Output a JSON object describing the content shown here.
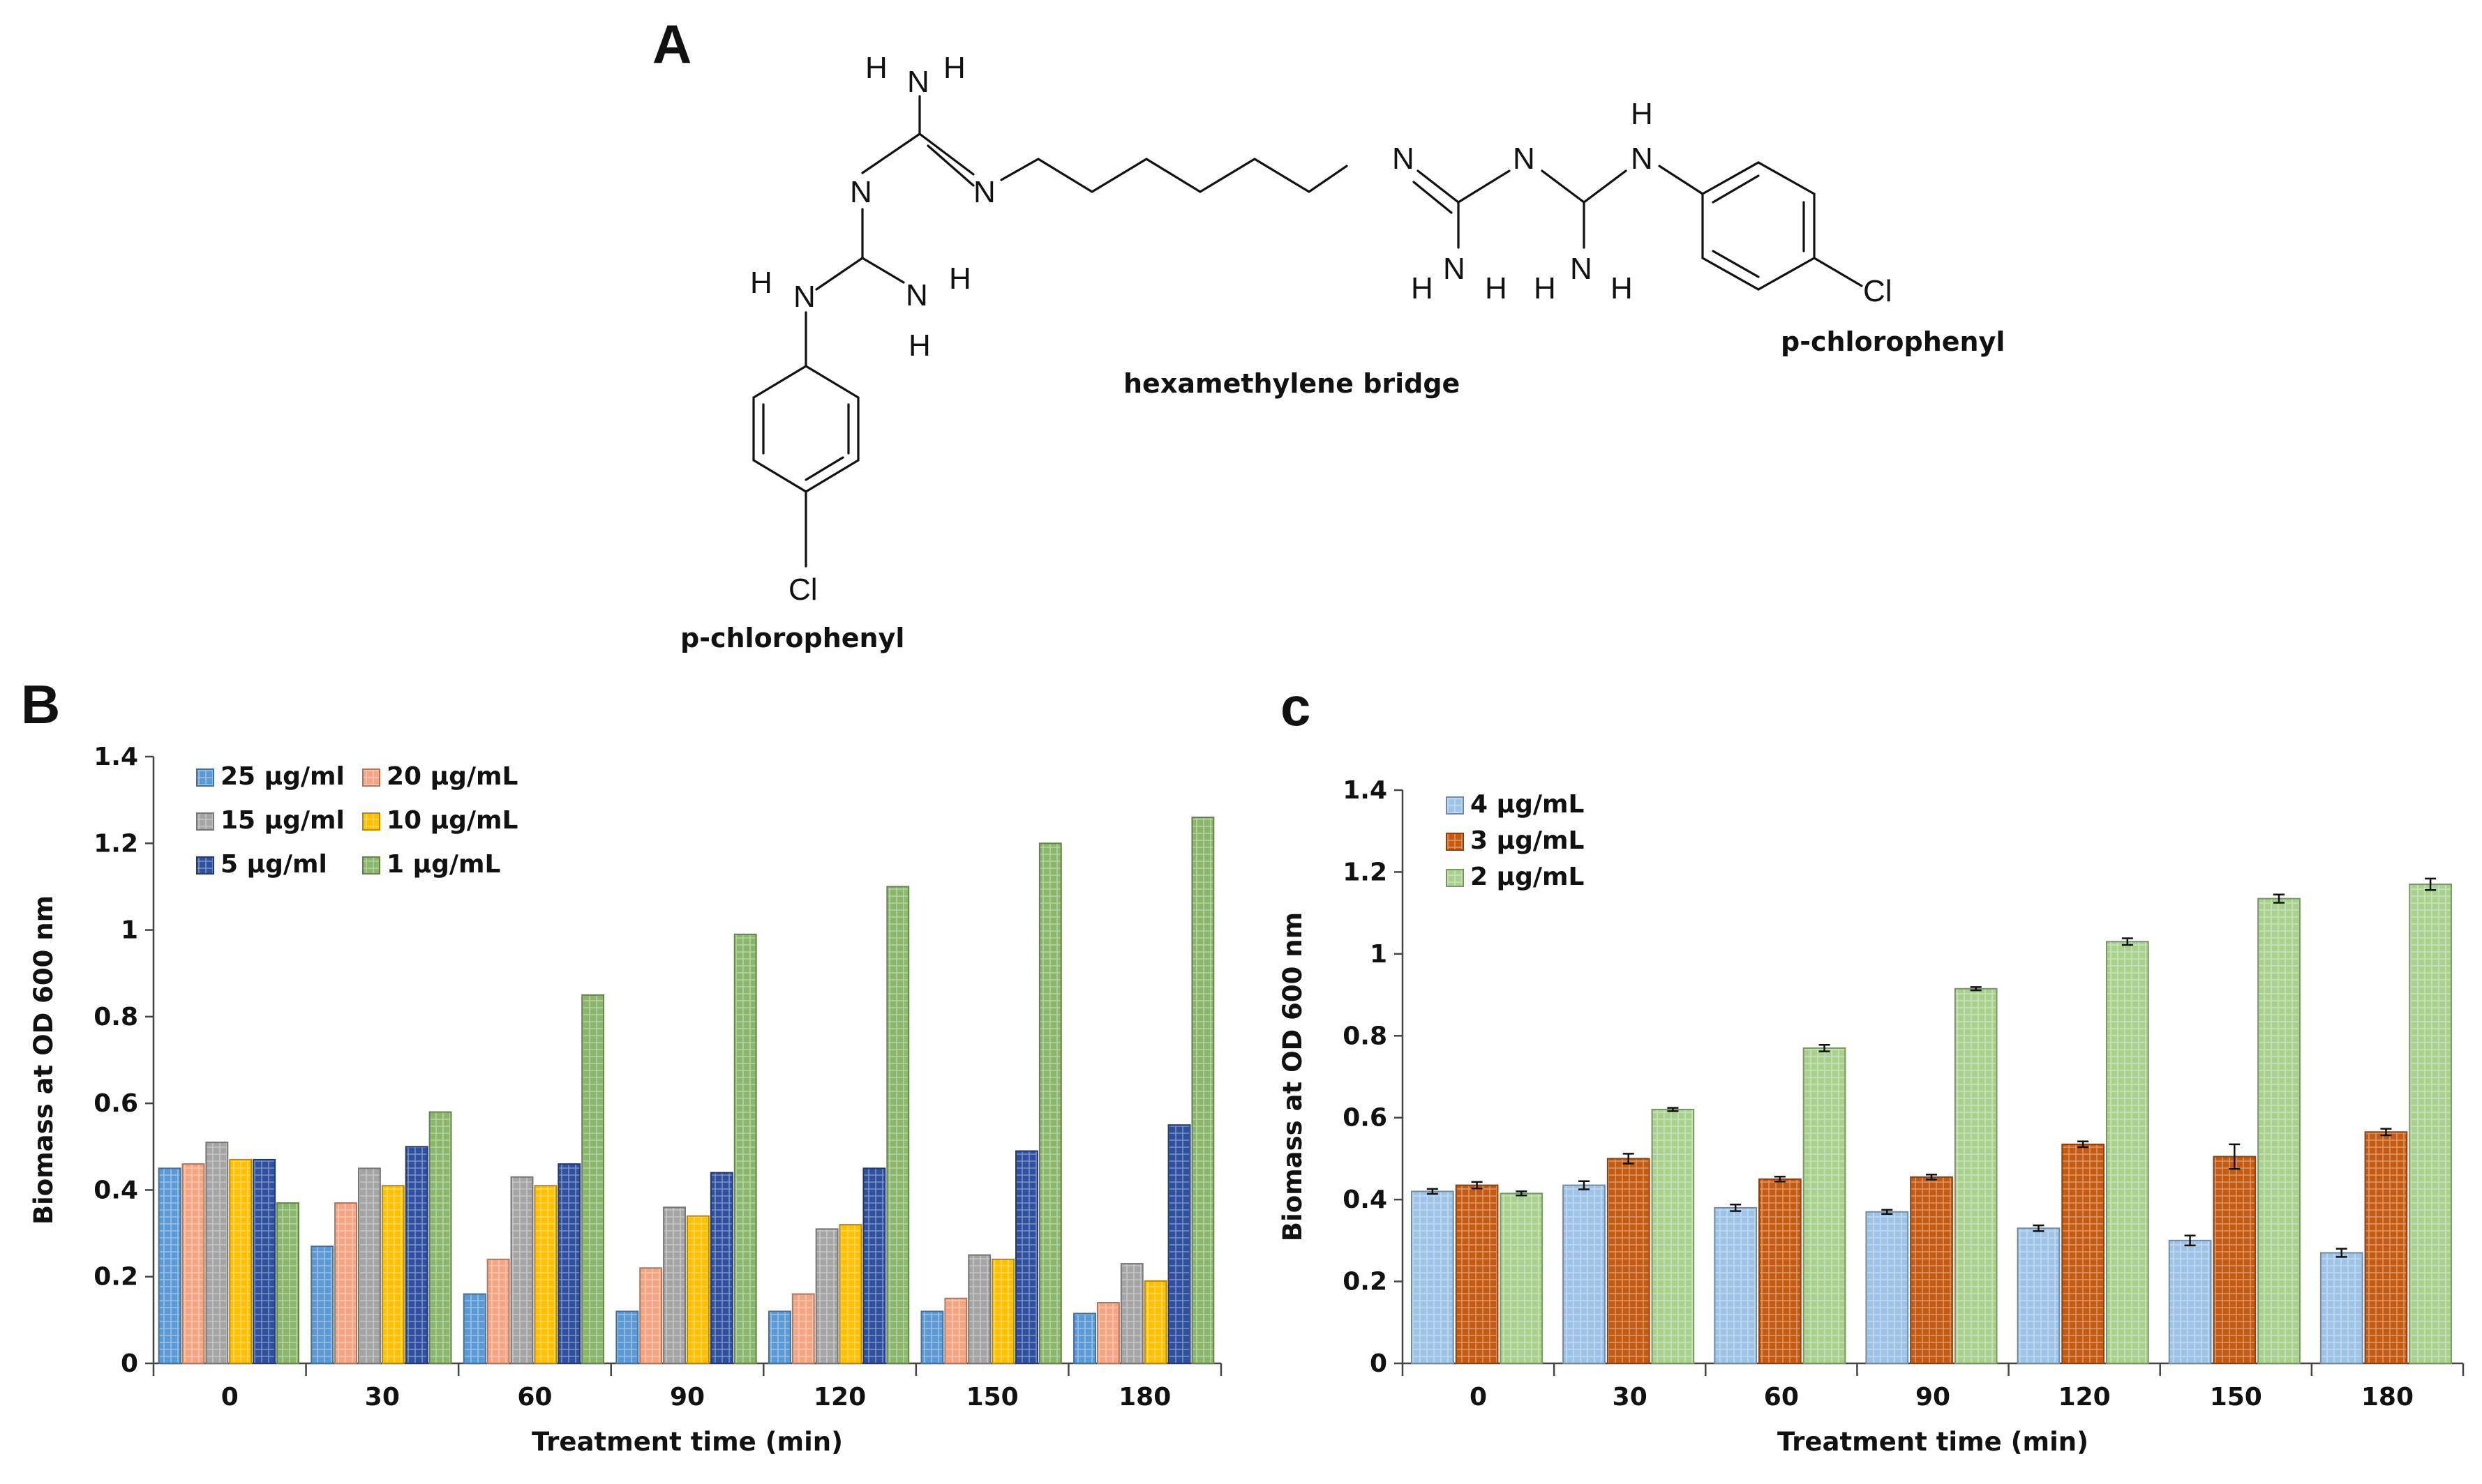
{
  "panels": {
    "a": {
      "letter": "A",
      "atoms": [
        "H",
        "N",
        "H",
        "N",
        "N",
        "H",
        "N",
        "N",
        "H",
        "H",
        "Cl",
        "N",
        "N",
        "H",
        "N",
        "N",
        "H",
        "N",
        "H",
        "H",
        "N",
        "H",
        "Cl"
      ],
      "captions": {
        "left_phenyl": "p-chlorophenyl",
        "bridge": "hexamethylene bridge",
        "right_phenyl": "p-chlorophenyl"
      }
    },
    "b": {
      "letter": "B"
    },
    "c": {
      "letter": "c"
    }
  },
  "chart_data": [
    {
      "id": "B",
      "type": "bar",
      "categories": [
        "0",
        "30",
        "60",
        "90",
        "120",
        "150",
        "180"
      ],
      "series": [
        {
          "name": "25 µg/ml",
          "color": "#5b9bd5",
          "values": [
            0.45,
            0.27,
            0.16,
            0.12,
            0.12,
            0.12,
            0.115
          ]
        },
        {
          "name": "20 µg/mL",
          "color": "#f4a582",
          "values": [
            0.46,
            0.37,
            0.24,
            0.22,
            0.16,
            0.15,
            0.14
          ]
        },
        {
          "name": "15 µg/ml",
          "color": "#a5a5a5",
          "values": [
            0.51,
            0.45,
            0.43,
            0.36,
            0.31,
            0.25,
            0.23
          ]
        },
        {
          "name": "10 µg/mL",
          "color": "#ffc000",
          "values": [
            0.47,
            0.41,
            0.41,
            0.34,
            0.32,
            0.24,
            0.19
          ]
        },
        {
          "name": "5 µg/ml",
          "color": "#2f4f9f",
          "values": [
            0.47,
            0.5,
            0.46,
            0.44,
            0.45,
            0.49,
            0.55
          ]
        },
        {
          "name": "1 µg/mL",
          "color": "#8bb76a",
          "values": [
            0.37,
            0.58,
            0.85,
            0.99,
            1.1,
            1.2,
            1.26
          ]
        }
      ],
      "ylim": [
        0,
        1.4
      ],
      "yticks": [
        "0",
        "0.2",
        "0.4",
        "0.6",
        "0.8",
        "1",
        "1.2",
        "1.4"
      ],
      "xlabel": "Treatment time (min)",
      "ylabel": "Biomass at OD 600 nm",
      "legend_position": "top-left"
    },
    {
      "id": "C",
      "type": "bar",
      "categories": [
        "0",
        "30",
        "60",
        "90",
        "120",
        "150",
        "180"
      ],
      "series": [
        {
          "name": "4 µg/mL",
          "color": "#9dc3e6",
          "values": [
            0.42,
            0.435,
            0.38,
            0.37,
            0.33,
            0.3,
            0.27
          ],
          "errors": [
            0.006,
            0.01,
            0.008,
            0.005,
            0.007,
            0.012,
            0.01
          ]
        },
        {
          "name": "3 µg/mL",
          "color": "#c55a11",
          "values": [
            0.435,
            0.5,
            0.45,
            0.455,
            0.535,
            0.505,
            0.565
          ],
          "errors": [
            0.008,
            0.012,
            0.006,
            0.006,
            0.007,
            0.03,
            0.008
          ]
        },
        {
          "name": "2 µg/mL",
          "color": "#a9d18e",
          "values": [
            0.415,
            0.62,
            0.77,
            0.915,
            1.03,
            1.135,
            1.17
          ],
          "errors": [
            0.005,
            0.004,
            0.008,
            0.004,
            0.008,
            0.01,
            0.014
          ]
        }
      ],
      "ylim": [
        0,
        1.4
      ],
      "yticks": [
        "0",
        "0.2",
        "0.4",
        "0.6",
        "0.8",
        "1",
        "1.2",
        "1.4"
      ],
      "xlabel": "Treatment time (min)",
      "ylabel": "Biomass at OD 600 nm",
      "legend_position": "top-left"
    }
  ]
}
